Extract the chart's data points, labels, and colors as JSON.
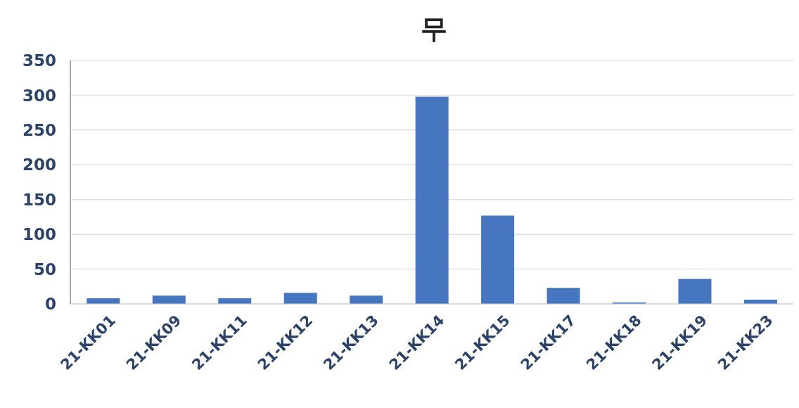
{
  "chart_data": {
    "type": "bar",
    "title": "무",
    "categories": [
      "21-KK01",
      "21-KK09",
      "21-KK11",
      "21-KK12",
      "21-KK13",
      "21-KK14",
      "21-KK15",
      "21-KK17",
      "21-KK18",
      "21-KK19",
      "21-KK23"
    ],
    "values": [
      8,
      12,
      8,
      16,
      12,
      298,
      127,
      23,
      2,
      36,
      6
    ],
    "color": "#4676c0",
    "ylim": [
      0,
      350
    ],
    "yticks": [
      0,
      50,
      100,
      150,
      200,
      250,
      300,
      350
    ],
    "grid": "y",
    "legend": false
  }
}
